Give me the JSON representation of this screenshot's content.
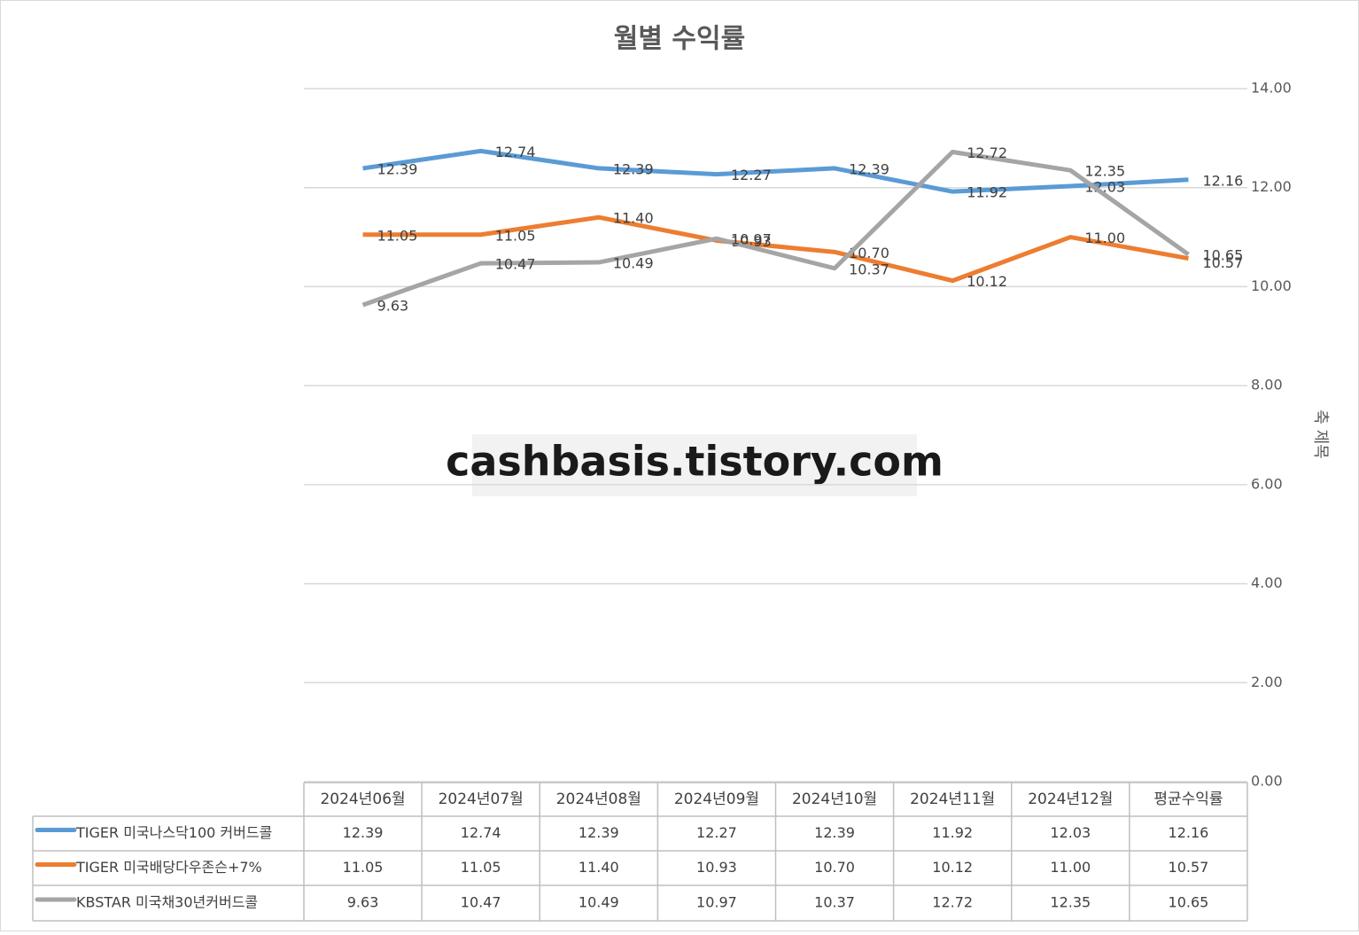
{
  "chart_data": {
    "type": "line",
    "title": "월별 수익률",
    "y_axis_label": "축 제목",
    "annotation": "cashbasis.tistory.com",
    "categories": [
      "2024년06월",
      "2024년07월",
      "2024년08월",
      "2024년09월",
      "2024년10월",
      "2024년11월",
      "2024년12월",
      "평균수익률"
    ],
    "series": [
      {
        "name": "TIGER 미국나스닥100 커버드콜",
        "color": "#5b9bd5",
        "values": [
          12.39,
          12.74,
          12.39,
          12.27,
          12.39,
          11.92,
          12.03,
          12.16
        ],
        "value_labels": [
          "12.39",
          "12.74",
          "12.39",
          "12.27",
          "12.39",
          "11.92",
          "12.03",
          "12.16"
        ]
      },
      {
        "name": "TIGER 미국배당다우존슨+7%",
        "color": "#ed7d31",
        "values": [
          11.05,
          11.05,
          11.4,
          10.93,
          10.7,
          10.12,
          11.0,
          10.57
        ],
        "value_labels": [
          "11.05",
          "11.05",
          "11.40",
          "10.93",
          "10.70",
          "10.12",
          "11.00",
          "10.57"
        ]
      },
      {
        "name": "KBSTAR 미국채30년커버드콜",
        "color": "#a5a5a5",
        "values": [
          9.63,
          10.47,
          10.49,
          10.97,
          10.37,
          12.72,
          12.35,
          10.65
        ],
        "value_labels": [
          "9.63",
          "10.47",
          "10.49",
          "10.97",
          "10.37",
          "12.72",
          "12.35",
          "10.65"
        ]
      }
    ],
    "ylim": [
      0,
      14
    ],
    "yticks": [
      {
        "value": 0,
        "label": "0.00"
      },
      {
        "value": 2,
        "label": "2.00"
      },
      {
        "value": 4,
        "label": "4.00"
      },
      {
        "value": 6,
        "label": "6.00"
      },
      {
        "value": 8,
        "label": "8.00"
      },
      {
        "value": 10,
        "label": "10.00"
      },
      {
        "value": 12,
        "label": "12.00"
      },
      {
        "value": 14,
        "label": "14.00"
      }
    ],
    "grid": true,
    "y_axis_side": "right"
  }
}
